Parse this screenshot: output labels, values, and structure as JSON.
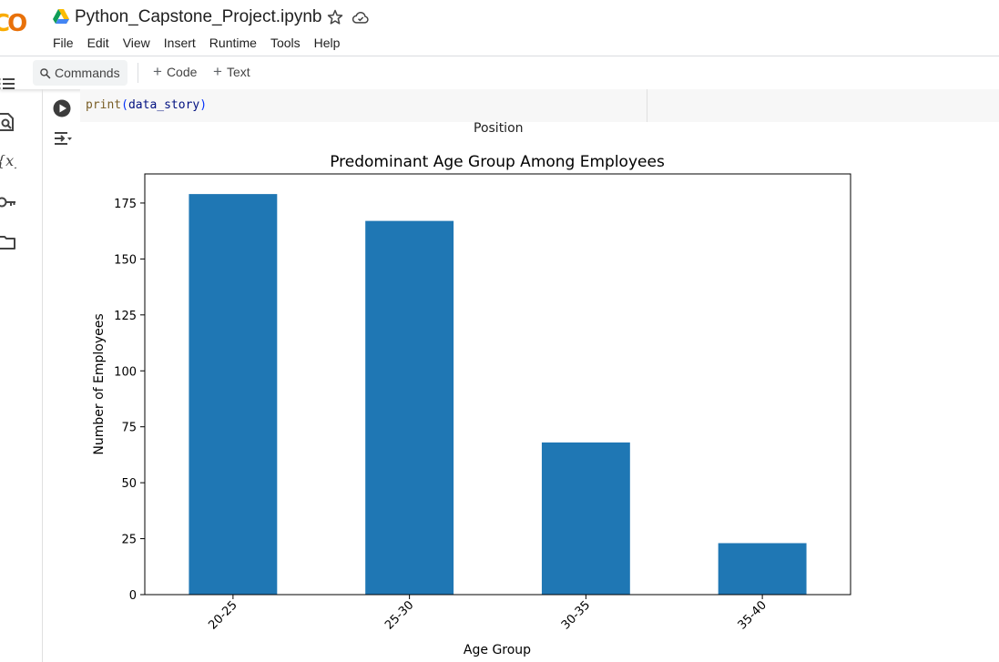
{
  "app": {
    "logo_text": "CO",
    "notebook_title": "Python_Capstone_Project.ipynb",
    "icons": [
      "google-drive-icon",
      "star-icon",
      "cloud-saved-icon"
    ]
  },
  "menu": {
    "items": [
      "File",
      "Edit",
      "View",
      "Insert",
      "Runtime",
      "Tools",
      "Help"
    ]
  },
  "toolbar": {
    "commands_label": "Commands",
    "add_code_label": "Code",
    "add_text_label": "Text"
  },
  "sidebar": {
    "icons": [
      "table-of-contents-icon",
      "find-replace-icon",
      "variables-icon",
      "secrets-key-icon",
      "files-folder-icon"
    ]
  },
  "cell": {
    "code": {
      "fn": "print",
      "open": "(",
      "arg": "data_story",
      "close": ")"
    },
    "output_text": "Position"
  },
  "chart_data": {
    "type": "bar",
    "title": "Predominant Age Group Among Employees",
    "xlabel": "Age Group",
    "ylabel": "Number of Employees",
    "categories": [
      "20-25",
      "25-30",
      "30-35",
      "35-40"
    ],
    "values": [
      179,
      167,
      68,
      23
    ],
    "ylim": [
      0,
      188
    ],
    "yticks": [
      0,
      25,
      50,
      75,
      100,
      125,
      150,
      175
    ],
    "bar_color": "#1f77b4",
    "grid": false,
    "legend": "none"
  }
}
